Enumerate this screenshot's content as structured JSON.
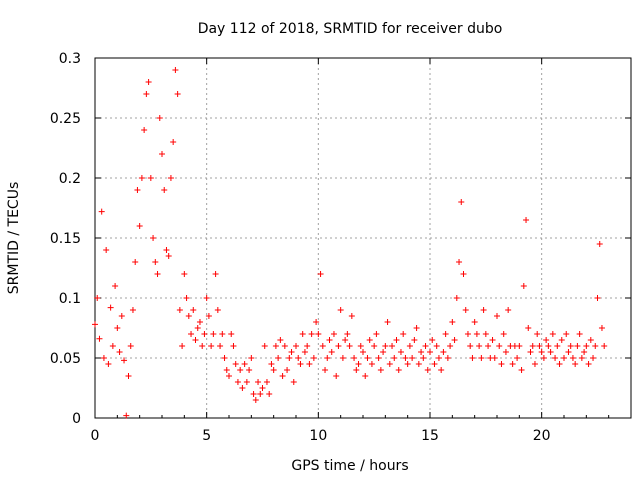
{
  "chart_data": {
    "type": "scatter",
    "title": "Day 112 of 2018, SRMTID for receiver dubo",
    "xlabel": "GPS time / hours",
    "ylabel": "SRMTID / TECUs",
    "xlim": [
      0,
      24
    ],
    "ylim": [
      0,
      0.3
    ],
    "x_ticks": [
      0,
      5,
      10,
      15,
      20
    ],
    "y_ticks": [
      0,
      0.05,
      0.1,
      0.15,
      0.2,
      0.25,
      0.3
    ],
    "x_tick_labels": [
      "0",
      "5",
      "10",
      "15",
      "20"
    ],
    "y_tick_labels": [
      "0",
      "0.05",
      "0.1",
      "0.15",
      "0.2",
      "0.25",
      "0.3"
    ],
    "grid": true,
    "marker": "+",
    "color": "#ff0000",
    "series": [
      {
        "name": "SRMTID",
        "x": [
          0.0,
          0.1,
          0.2,
          0.3,
          0.4,
          0.5,
          0.6,
          0.7,
          0.8,
          0.9,
          1.0,
          1.1,
          1.2,
          1.3,
          1.4,
          1.5,
          1.6,
          1.7,
          1.8,
          1.9,
          2.0,
          2.1,
          2.2,
          2.3,
          2.4,
          2.5,
          2.6,
          2.7,
          2.8,
          2.9,
          3.0,
          3.1,
          3.2,
          3.3,
          3.4,
          3.5,
          3.6,
          3.7,
          3.8,
          3.9,
          4.0,
          4.1,
          4.2,
          4.3,
          4.4,
          4.5,
          4.6,
          4.7,
          4.8,
          4.9,
          5.0,
          5.1,
          5.2,
          5.3,
          5.4,
          5.5,
          5.6,
          5.7,
          5.8,
          5.9,
          6.0,
          6.1,
          6.2,
          6.3,
          6.4,
          6.5,
          6.6,
          6.7,
          6.8,
          6.9,
          7.0,
          7.1,
          7.2,
          7.3,
          7.4,
          7.5,
          7.6,
          7.7,
          7.8,
          7.9,
          8.0,
          8.1,
          8.2,
          8.3,
          8.4,
          8.5,
          8.6,
          8.7,
          8.8,
          8.9,
          9.0,
          9.1,
          9.2,
          9.3,
          9.4,
          9.5,
          9.6,
          9.7,
          9.8,
          9.9,
          10.0,
          10.1,
          10.2,
          10.3,
          10.4,
          10.5,
          10.6,
          10.7,
          10.8,
          10.9,
          11.0,
          11.1,
          11.2,
          11.3,
          11.4,
          11.5,
          11.6,
          11.7,
          11.8,
          11.9,
          12.0,
          12.1,
          12.2,
          12.3,
          12.4,
          12.5,
          12.6,
          12.7,
          12.8,
          12.9,
          13.0,
          13.1,
          13.2,
          13.3,
          13.4,
          13.5,
          13.6,
          13.7,
          13.8,
          13.9,
          14.0,
          14.1,
          14.2,
          14.3,
          14.4,
          14.5,
          14.6,
          14.7,
          14.8,
          14.9,
          15.0,
          15.1,
          15.2,
          15.3,
          15.4,
          15.5,
          15.6,
          15.7,
          15.8,
          15.9,
          16.0,
          16.1,
          16.2,
          16.3,
          16.4,
          16.5,
          16.6,
          16.7,
          16.8,
          16.9,
          17.0,
          17.1,
          17.2,
          17.3,
          17.4,
          17.5,
          17.6,
          17.7,
          17.8,
          17.9,
          18.0,
          18.1,
          18.2,
          18.3,
          18.4,
          18.5,
          18.6,
          18.7,
          18.8,
          18.9,
          19.0,
          19.1,
          19.2,
          19.3,
          19.4,
          19.5,
          19.6,
          19.7,
          19.8,
          19.9,
          20.0,
          20.1,
          20.2,
          20.3,
          20.4,
          20.5,
          20.6,
          20.7,
          20.8,
          20.9,
          21.0,
          21.1,
          21.2,
          21.3,
          21.4,
          21.5,
          21.6,
          21.7,
          21.8,
          21.9,
          22.0,
          22.1,
          22.2,
          22.3,
          22.4,
          22.5,
          22.6,
          22.7,
          22.8
        ],
        "y": [
          0.078,
          0.1,
          0.066,
          0.172,
          0.05,
          0.14,
          0.045,
          0.092,
          0.06,
          0.11,
          0.075,
          0.055,
          0.085,
          0.048,
          0.002,
          0.035,
          0.06,
          0.09,
          0.13,
          0.19,
          0.16,
          0.2,
          0.24,
          0.27,
          0.28,
          0.2,
          0.15,
          0.13,
          0.12,
          0.25,
          0.22,
          0.19,
          0.14,
          0.135,
          0.2,
          0.23,
          0.29,
          0.27,
          0.09,
          0.06,
          0.12,
          0.1,
          0.085,
          0.07,
          0.09,
          0.065,
          0.075,
          0.08,
          0.06,
          0.07,
          0.1,
          0.085,
          0.06,
          0.07,
          0.12,
          0.09,
          0.06,
          0.07,
          0.05,
          0.04,
          0.035,
          0.07,
          0.06,
          0.045,
          0.03,
          0.04,
          0.025,
          0.045,
          0.03,
          0.04,
          0.05,
          0.02,
          0.015,
          0.03,
          0.02,
          0.025,
          0.06,
          0.03,
          0.02,
          0.045,
          0.04,
          0.06,
          0.05,
          0.065,
          0.035,
          0.06,
          0.04,
          0.05,
          0.055,
          0.03,
          0.06,
          0.05,
          0.045,
          0.07,
          0.055,
          0.06,
          0.045,
          0.07,
          0.05,
          0.08,
          0.07,
          0.12,
          0.06,
          0.04,
          0.05,
          0.065,
          0.055,
          0.07,
          0.035,
          0.06,
          0.09,
          0.05,
          0.065,
          0.07,
          0.06,
          0.085,
          0.05,
          0.04,
          0.045,
          0.06,
          0.055,
          0.035,
          0.05,
          0.065,
          0.045,
          0.06,
          0.07,
          0.05,
          0.04,
          0.055,
          0.06,
          0.08,
          0.045,
          0.06,
          0.05,
          0.065,
          0.04,
          0.055,
          0.07,
          0.05,
          0.045,
          0.06,
          0.05,
          0.065,
          0.075,
          0.045,
          0.055,
          0.05,
          0.06,
          0.04,
          0.055,
          0.065,
          0.045,
          0.06,
          0.05,
          0.04,
          0.055,
          0.07,
          0.05,
          0.06,
          0.08,
          0.065,
          0.1,
          0.13,
          0.18,
          0.12,
          0.09,
          0.07,
          0.06,
          0.05,
          0.08,
          0.07,
          0.06,
          0.05,
          0.09,
          0.07,
          0.06,
          0.05,
          0.065,
          0.05,
          0.085,
          0.06,
          0.045,
          0.07,
          0.055,
          0.09,
          0.06,
          0.045,
          0.06,
          0.05,
          0.06,
          0.04,
          0.11,
          0.165,
          0.075,
          0.055,
          0.06,
          0.045,
          0.07,
          0.06,
          0.055,
          0.05,
          0.065,
          0.06,
          0.055,
          0.07,
          0.05,
          0.06,
          0.045,
          0.065,
          0.05,
          0.07,
          0.055,
          0.06,
          0.05,
          0.045,
          0.06,
          0.07,
          0.05,
          0.055,
          0.06,
          0.045,
          0.065,
          0.05,
          0.06,
          0.1,
          0.145,
          0.075,
          0.06
        ]
      }
    ]
  }
}
